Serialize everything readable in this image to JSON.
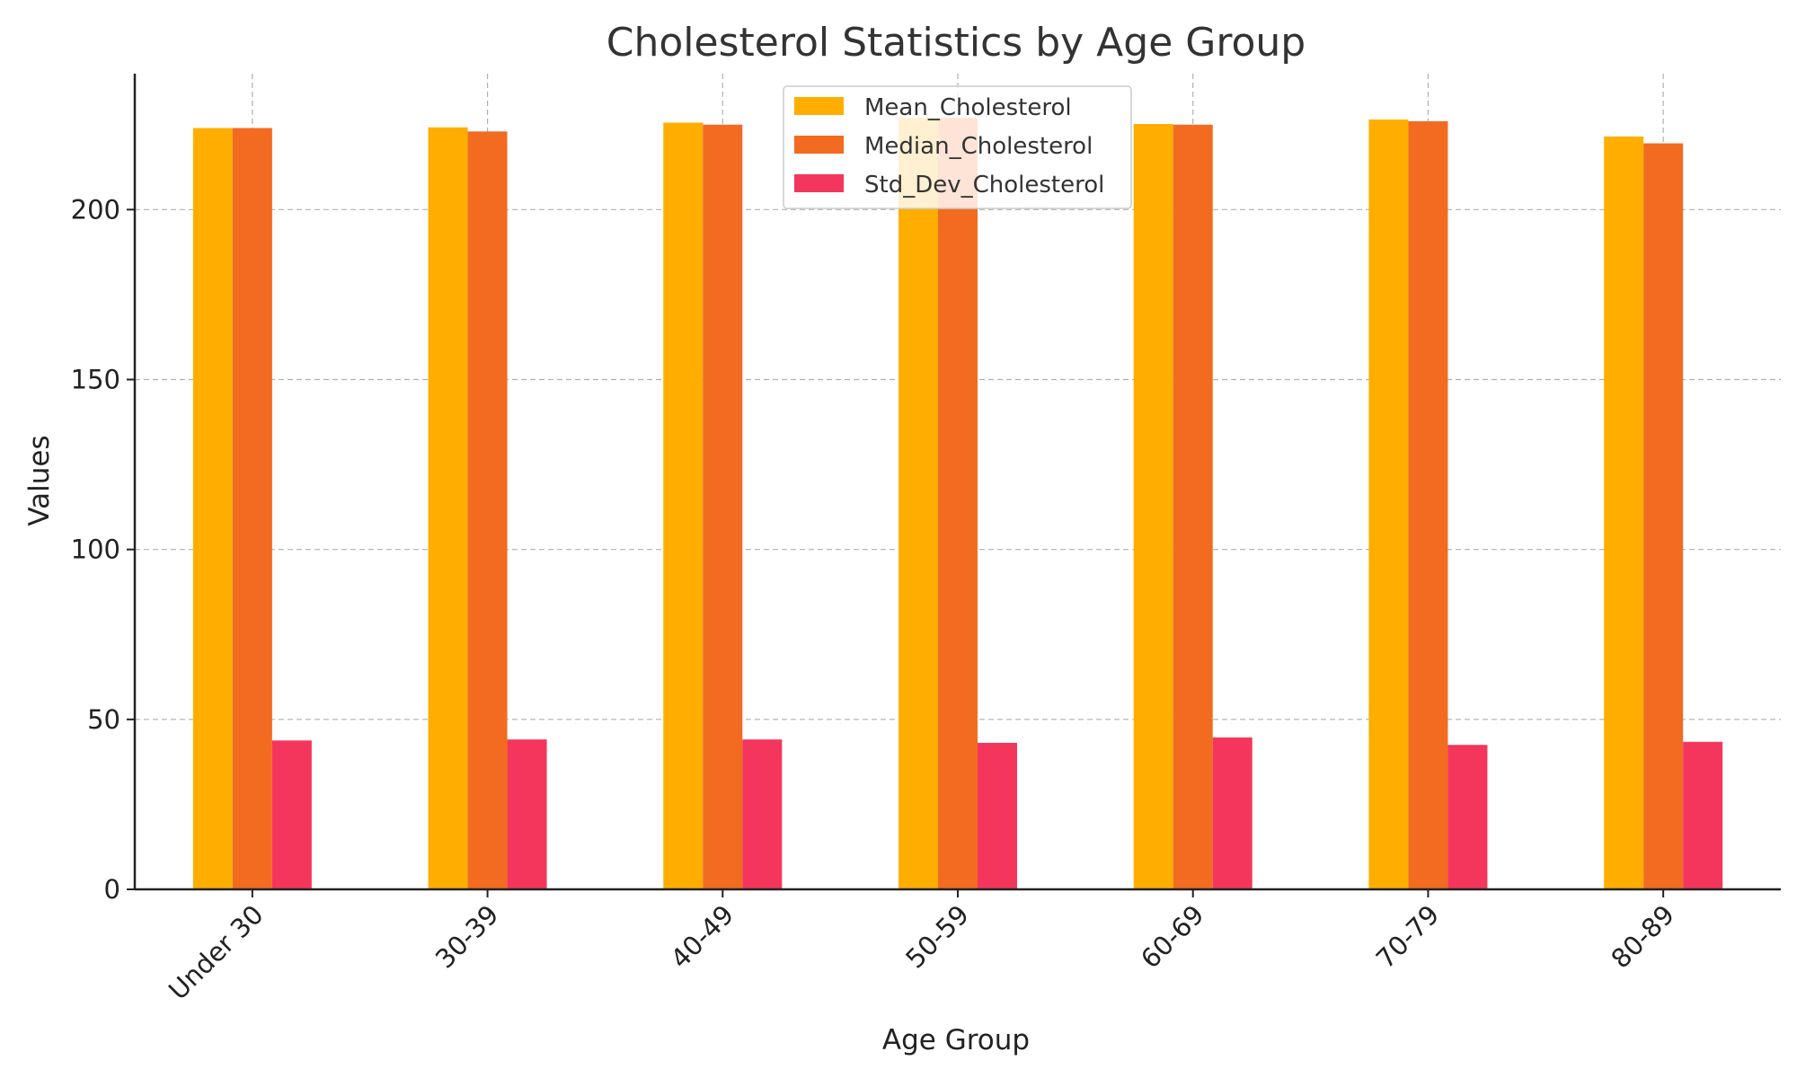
{
  "chart_data": {
    "type": "bar",
    "title": "Cholesterol Statistics by Age Group",
    "xlabel": "Age Group",
    "ylabel": "Values",
    "categories": [
      "Under 30",
      "30-39",
      "40-49",
      "50-59",
      "60-69",
      "70-79",
      "80-89"
    ],
    "series": [
      {
        "name": "Mean_Cholesterol",
        "color": "#FFAE00",
        "values": [
          224.0,
          224.2,
          225.6,
          227.0,
          225.2,
          226.5,
          221.5
        ]
      },
      {
        "name": "Median_Cholesterol",
        "color": "#F26B21",
        "values": [
          224.0,
          223.0,
          225.0,
          227.0,
          225.0,
          226.0,
          219.5
        ]
      },
      {
        "name": "Std_Dev_Cholesterol",
        "color": "#F5365C",
        "values": [
          43.8,
          44.1,
          44.1,
          43.1,
          44.7,
          42.5,
          43.4
        ]
      }
    ],
    "ylim": [
      0,
      240
    ],
    "yticks": [
      0,
      50,
      100,
      150,
      200
    ],
    "grid": true,
    "grid_color": "#b0b0b0",
    "legend_position": "top-center"
  }
}
